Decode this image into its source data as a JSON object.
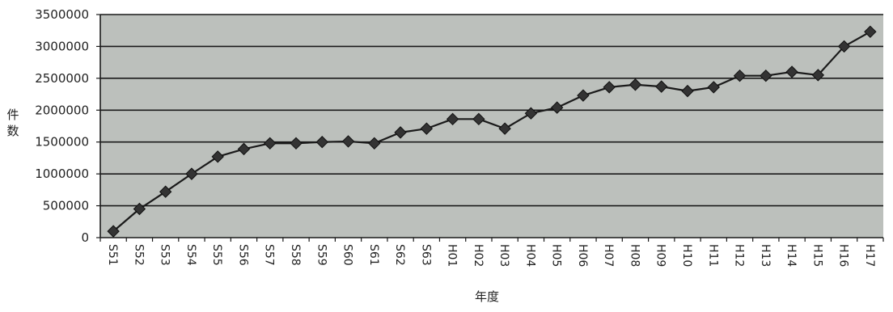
{
  "chart_data": {
    "type": "line",
    "title": "",
    "xlabel": "年度",
    "ylabel": "件数",
    "ylim": [
      0,
      3500000
    ],
    "yticks": [
      "3500000",
      "3000000",
      "2500000",
      "2000000",
      "1500000",
      "1000000",
      "500000",
      "0"
    ],
    "ytick_values": [
      3500000,
      3000000,
      2500000,
      2000000,
      1500000,
      1000000,
      500000,
      0
    ],
    "categories": [
      "S51",
      "S52",
      "S53",
      "S54",
      "S55",
      "S56",
      "S57",
      "S58",
      "S59",
      "S60",
      "S61",
      "S62",
      "S63",
      "H01",
      "H02",
      "H03",
      "H04",
      "H05",
      "H06",
      "H07",
      "H08",
      "H09",
      "H10",
      "H11",
      "H12",
      "H13",
      "H14",
      "H15",
      "H16",
      "H17"
    ],
    "series": [
      {
        "values": [
          100000,
          450000,
          720000,
          1000000,
          1270000,
          1390000,
          1480000,
          1480000,
          1500000,
          1510000,
          1480000,
          1650000,
          1710000,
          1860000,
          1860000,
          1710000,
          1950000,
          2040000,
          2230000,
          2360000,
          2400000,
          2370000,
          2300000,
          2360000,
          2540000,
          2540000,
          2600000,
          2550000,
          3000000,
          3230000
        ]
      }
    ],
    "grid": true,
    "legend": "none",
    "colors": {
      "plot_background": "#bcc0bc",
      "gridline": "#1a1a1a",
      "line": "#1a1a1a",
      "marker": "#333333",
      "text": "#222222"
    },
    "marker": "diamond"
  }
}
